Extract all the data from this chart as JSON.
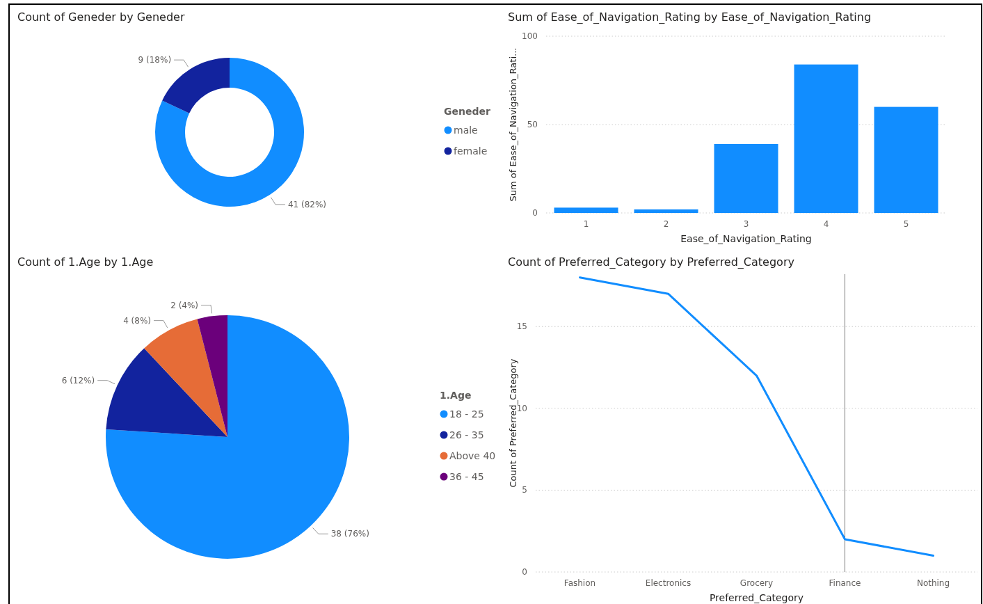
{
  "chart_data": [
    {
      "type": "donut",
      "title": "Count of Geneder by Geneder",
      "legend_title": "Geneder",
      "legend": "right",
      "categories": [
        "male",
        "female"
      ],
      "values": [
        41,
        9
      ],
      "colors": [
        "#118dff",
        "#12239e"
      ],
      "value_labels": [
        "41 (82%)",
        "9 (18%)"
      ]
    },
    {
      "type": "bar",
      "title": "Sum of Ease_of_Navigation_Rating by Ease_of_Navigation_Rating",
      "xlabel": "Ease_of_Navigation_Rating",
      "ylabel": "Sum of Ease_of_Navigation_Rati...",
      "categories": [
        "1",
        "2",
        "3",
        "4",
        "5"
      ],
      "values": [
        3,
        2,
        39,
        84,
        60
      ],
      "color": "#118dff",
      "ylim": [
        0,
        100
      ],
      "yticks": [
        0,
        50,
        100
      ],
      "grid": "y"
    },
    {
      "type": "pie",
      "title": "Count of 1.Age by 1.Age",
      "legend_title": "1.Age",
      "legend": "right",
      "categories": [
        "18 - 25",
        "26 - 35",
        "Above 40",
        "36 - 45"
      ],
      "values": [
        38,
        6,
        4,
        2
      ],
      "colors": [
        "#118dff",
        "#12239e",
        "#e66c37",
        "#6b007b"
      ],
      "value_labels": [
        "38 (76%)",
        "6 (12%)",
        "4 (8%)",
        "2 (4%)"
      ]
    },
    {
      "type": "line",
      "title": "Count of Preferred_Category by Preferred_Category",
      "xlabel": "Preferred_Category",
      "ylabel": "Count of Preferred_Category",
      "categories": [
        "Fashion",
        "Electronics",
        "Grocery",
        "Finance",
        "Nothing"
      ],
      "values": [
        18,
        17,
        12,
        2,
        1
      ],
      "color": "#118dff",
      "ylim": [
        0,
        18.2
      ],
      "yticks": [
        0,
        5,
        10,
        15
      ],
      "grid": "y",
      "ref_lines": [
        {
          "axis": "x",
          "value": "Finance",
          "color": "#777777"
        }
      ]
    }
  ]
}
